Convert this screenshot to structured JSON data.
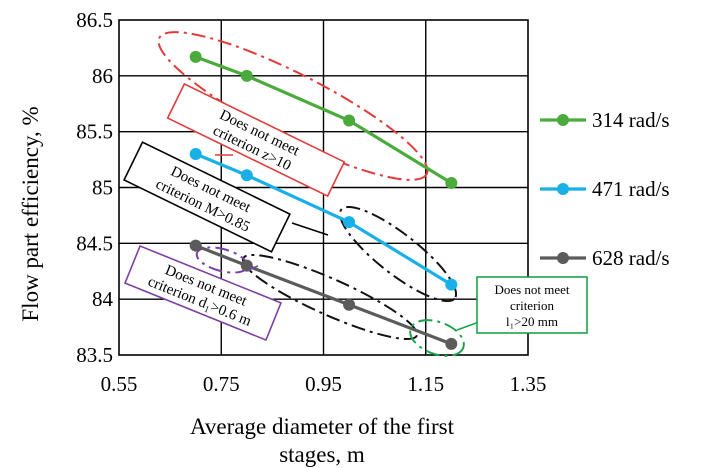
{
  "chart_data": {
    "type": "line",
    "xlabel": "Average diameter of the first stages, m",
    "ylabel": "Flow part efficiency, %",
    "xlim": [
      0.55,
      1.35
    ],
    "ylim": [
      83.5,
      86.5
    ],
    "x_ticks": [
      "0.55",
      "0.75",
      "0.95",
      "1.15",
      "1.35"
    ],
    "y_ticks": [
      "83.5",
      "84",
      "84.5",
      "85",
      "85.5",
      "86",
      "86.5"
    ],
    "grid": true,
    "legend_position": "right",
    "series": [
      {
        "name": "314 rad/s",
        "color": "#4aab3c",
        "points": [
          [
            0.7,
            86.17
          ],
          [
            0.8,
            86.0
          ],
          [
            1.0,
            85.6
          ],
          [
            1.2,
            85.04
          ]
        ]
      },
      {
        "name": "471 rad/s",
        "color": "#19b0e8",
        "points": [
          [
            0.7,
            85.3
          ],
          [
            0.8,
            85.11
          ],
          [
            1.0,
            84.69
          ],
          [
            1.2,
            84.13
          ]
        ]
      },
      {
        "name": "628 rad/s",
        "color": "#5b5b5b",
        "points": [
          [
            0.7,
            84.48
          ],
          [
            0.8,
            84.3
          ],
          [
            1.0,
            83.95
          ],
          [
            1.2,
            83.6
          ]
        ]
      }
    ],
    "annotations": [
      {
        "lines": [
          "Does not meet",
          "criterion z>10"
        ],
        "color": "#e23b3b"
      },
      {
        "lines": [
          "Does not meet",
          "criterion M>0.85"
        ],
        "color": "#000000"
      },
      {
        "lines": [
          "Does not meet",
          "criterion d₁>0.6 m"
        ],
        "color": "#7c3fa3"
      },
      {
        "lines": [
          "Does not meet",
          "criterion",
          "l₁>20 mm"
        ],
        "color": "#1aa34a"
      }
    ]
  }
}
